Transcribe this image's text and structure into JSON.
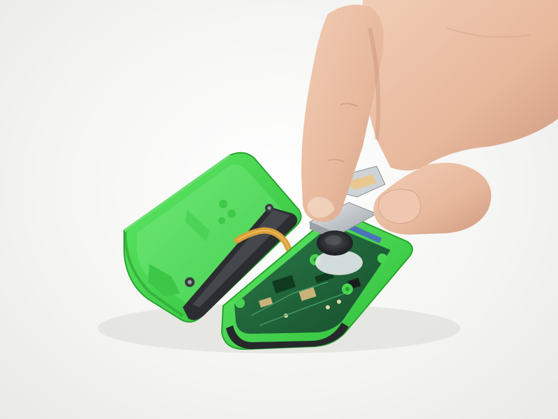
{
  "scene": {
    "subject": "disassembled-joy-con-controller",
    "colors": {
      "background": "#f4f4f2",
      "shell_green": "#3fd94a",
      "shell_green_dark": "#2aa832",
      "shell_interior": "#58e060",
      "pcb_green": "#1f6b3d",
      "pcb_dark": "#174f2d",
      "ribbon_amber": "#d9a13a",
      "metal": "#c8ccd0",
      "rail_black": "#2b2d30",
      "skin": "#e9bfa4",
      "skin_shadow": "#c99680"
    },
    "icons": {
      "left-shell": "open-controller-half",
      "right-shell": "controller-half-with-board",
      "hand": "finger-pressing-component"
    }
  }
}
